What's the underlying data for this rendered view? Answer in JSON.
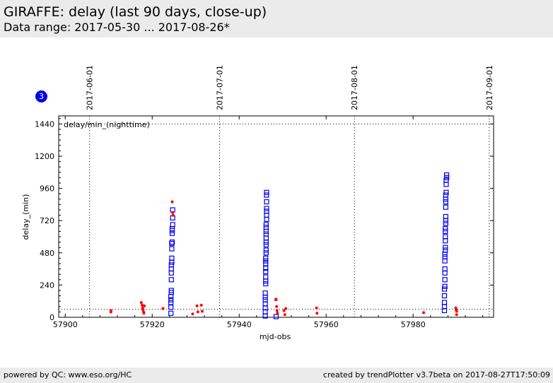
{
  "header": {
    "title": "GIRAFFE: delay (last 90 days, close-up)",
    "subtitle": "Data range: 2017-05-30 ... 2017-08-26*"
  },
  "badge": {
    "label": "3",
    "color": "#0000ee"
  },
  "footer": {
    "left": "powered by QC: www.eso.org/HC",
    "right": "created by trendPlotter v3.7beta on 2017-08-27T17:50:09"
  },
  "chart_data": {
    "type": "scatter",
    "xlabel": "mjd-obs",
    "ylabel": "delay_(min)",
    "annotation": "delay/min_(nighttime)",
    "xlim": [
      57898.5,
      57998.5
    ],
    "ylim": [
      0,
      1500
    ],
    "xticks": [
      57900,
      57920,
      57940,
      57960,
      57980
    ],
    "yticks": [
      0,
      240,
      480,
      720,
      960,
      1200,
      1440
    ],
    "grid": false,
    "reference_lines": [
      {
        "orientation": "horizontal",
        "y": 1440,
        "style": "dotted"
      },
      {
        "orientation": "horizontal",
        "y": 60,
        "style": "dotted"
      }
    ],
    "date_markers": [
      {
        "label": "2017-06-01",
        "x": 57905.6
      },
      {
        "label": "2017-07-01",
        "x": 57935.5
      },
      {
        "label": "2017-08-01",
        "x": 57966.5
      },
      {
        "label": "2017-09-01",
        "x": 57997.5
      }
    ],
    "series": [
      {
        "marker": "open-square",
        "color": "#0000ee",
        "points": [
          [
            57924.3,
            30
          ],
          [
            57924.3,
            75
          ],
          [
            57924.3,
            110
          ],
          [
            57924.3,
            130
          ],
          [
            57924.3,
            155
          ],
          [
            57924.4,
            185
          ],
          [
            57924.4,
            200
          ],
          [
            57924.4,
            280
          ],
          [
            57924.4,
            330
          ],
          [
            57924.4,
            360
          ],
          [
            57924.4,
            390
          ],
          [
            57924.5,
            410
          ],
          [
            57924.5,
            440
          ],
          [
            57924.5,
            510
          ],
          [
            57924.5,
            550
          ],
          [
            57924.6,
            560
          ],
          [
            57924.6,
            625
          ],
          [
            57924.6,
            645
          ],
          [
            57924.6,
            660
          ],
          [
            57924.7,
            690
          ],
          [
            57924.7,
            740
          ],
          [
            57924.7,
            800
          ],
          [
            57946.0,
            10
          ],
          [
            57946.0,
            40
          ],
          [
            57946.0,
            70
          ],
          [
            57946.0,
            100
          ],
          [
            57946.0,
            130
          ],
          [
            57946.0,
            150
          ],
          [
            57946.0,
            180
          ],
          [
            57946.1,
            250
          ],
          [
            57946.1,
            270
          ],
          [
            57946.1,
            300
          ],
          [
            57946.1,
            340
          ],
          [
            57946.1,
            365
          ],
          [
            57946.1,
            400
          ],
          [
            57946.1,
            420
          ],
          [
            57946.1,
            440
          ],
          [
            57946.2,
            480
          ],
          [
            57946.2,
            500
          ],
          [
            57946.2,
            540
          ],
          [
            57946.2,
            560
          ],
          [
            57946.2,
            590
          ],
          [
            57946.2,
            620
          ],
          [
            57946.2,
            640
          ],
          [
            57946.2,
            670
          ],
          [
            57946.2,
            690
          ],
          [
            57946.3,
            730
          ],
          [
            57946.3,
            760
          ],
          [
            57946.3,
            790
          ],
          [
            57946.3,
            810
          ],
          [
            57946.3,
            860
          ],
          [
            57946.3,
            910
          ],
          [
            57946.3,
            930
          ],
          [
            57948.5,
            5
          ],
          [
            57987.2,
            50
          ],
          [
            57987.2,
            80
          ],
          [
            57987.2,
            110
          ],
          [
            57987.2,
            160
          ],
          [
            57987.2,
            210
          ],
          [
            57987.3,
            230
          ],
          [
            57987.3,
            280
          ],
          [
            57987.3,
            330
          ],
          [
            57987.3,
            360
          ],
          [
            57987.3,
            420
          ],
          [
            57987.3,
            450
          ],
          [
            57987.3,
            470
          ],
          [
            57987.4,
            500
          ],
          [
            57987.4,
            520
          ],
          [
            57987.4,
            570
          ],
          [
            57987.4,
            600
          ],
          [
            57987.4,
            640
          ],
          [
            57987.4,
            660
          ],
          [
            57987.5,
            700
          ],
          [
            57987.5,
            720
          ],
          [
            57987.5,
            750
          ],
          [
            57987.5,
            820
          ],
          [
            57987.5,
            860
          ],
          [
            57987.5,
            880
          ],
          [
            57987.5,
            910
          ],
          [
            57987.6,
            930
          ],
          [
            57987.6,
            990
          ],
          [
            57987.6,
            1020
          ],
          [
            57987.7,
            1040
          ],
          [
            57987.7,
            1060
          ]
        ]
      },
      {
        "marker": "dot",
        "color": "#ff0000",
        "points": [
          [
            57910.5,
            50
          ],
          [
            57910.5,
            40
          ],
          [
            57917.5,
            110
          ],
          [
            57917.7,
            90
          ],
          [
            57917.8,
            70
          ],
          [
            57917.9,
            55
          ],
          [
            57918.0,
            40
          ],
          [
            57918.1,
            30
          ],
          [
            57918.2,
            85
          ],
          [
            57922.5,
            65
          ],
          [
            57924.6,
            860
          ],
          [
            57924.7,
            780
          ],
          [
            57924.8,
            760
          ],
          [
            57929.3,
            25
          ],
          [
            57930.3,
            85
          ],
          [
            57930.5,
            40
          ],
          [
            57931.3,
            90
          ],
          [
            57931.5,
            45
          ],
          [
            57948.4,
            130
          ],
          [
            57948.5,
            135
          ],
          [
            57948.6,
            80
          ],
          [
            57948.7,
            50
          ],
          [
            57948.8,
            30
          ],
          [
            57950.3,
            50
          ],
          [
            57950.5,
            20
          ],
          [
            57950.7,
            65
          ],
          [
            57957.8,
            70
          ],
          [
            57957.9,
            30
          ],
          [
            57982.4,
            35
          ],
          [
            57989.8,
            70
          ],
          [
            57989.9,
            55
          ],
          [
            57990.0,
            45
          ],
          [
            57990.0,
            20
          ]
        ]
      }
    ]
  }
}
